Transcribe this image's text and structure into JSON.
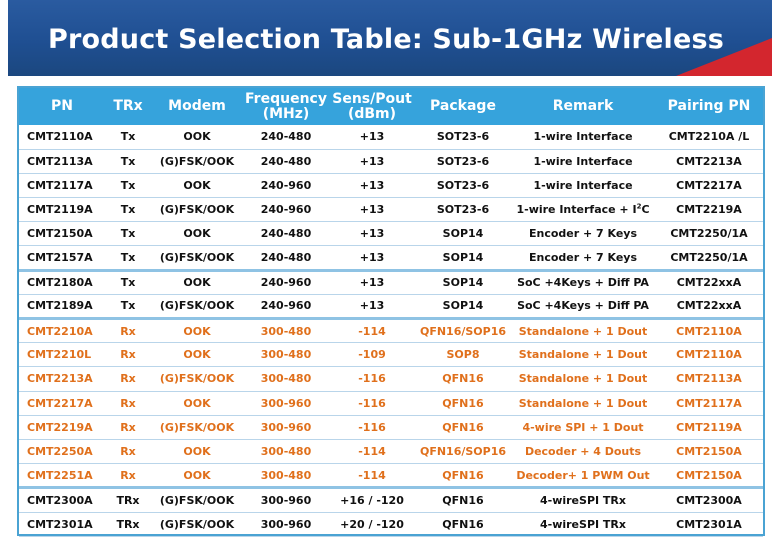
{
  "header": {
    "title": "Product Selection Table: Sub-1GHz Wireless",
    "banner_color": "#1f4f92",
    "accent_color": "#d3262e"
  },
  "table": {
    "header_color": "#36a3dc",
    "rx_text_color": "#e0701c",
    "columns": [
      "PN",
      "TRx",
      "Modem",
      "Frequency (MHz)",
      "Sens/Pout (dBm)",
      "Package",
      "Remark",
      "Pairing PN"
    ],
    "rows": [
      {
        "pn": "CMT2110A",
        "trx": "Tx",
        "modem": "OOK",
        "freq": "240-480",
        "sens": "+13",
        "pkg": "SOT23-6",
        "remark": "1-wire Interface",
        "pair": "CMT2210A /L"
      },
      {
        "pn": "CMT2113A",
        "trx": "Tx",
        "modem": "(G)FSK/OOK",
        "freq": "240-480",
        "sens": "+13",
        "pkg": "SOT23-6",
        "remark": "1-wire Interface",
        "pair": "CMT2213A"
      },
      {
        "pn": "CMT2117A",
        "trx": "Tx",
        "modem": "OOK",
        "freq": "240-960",
        "sens": "+13",
        "pkg": "SOT23-6",
        "remark": "1-wire Interface",
        "pair": "CMT2217A"
      },
      {
        "pn": "CMT2119A",
        "trx": "Tx",
        "modem": "(G)FSK/OOK",
        "freq": "240-960",
        "sens": "+13",
        "pkg": "SOT23-6",
        "remark": "1-wire Interface + I",
        "remark_sup": "2",
        "remark_tail": "C",
        "pair": "CMT2219A"
      },
      {
        "pn": "CMT2150A",
        "trx": "Tx",
        "modem": "OOK",
        "freq": "240-480",
        "sens": "+13",
        "pkg": "SOP14",
        "remark": "Encoder + 7 Keys",
        "pair": "CMT2250/1A"
      },
      {
        "pn": "CMT2157A",
        "trx": "Tx",
        "modem": "(G)FSK/OOK",
        "freq": "240-480",
        "sens": "+13",
        "pkg": "SOP14",
        "remark": "Encoder + 7 Keys",
        "pair": "CMT2250/1A"
      },
      {
        "pn": "CMT2180A",
        "trx": "Tx",
        "modem": "OOK",
        "freq": "240-960",
        "sens": "+13",
        "pkg": "SOP14",
        "remark": "SoC +4Keys + Diff PA",
        "pair": "CMT22xxA"
      },
      {
        "pn": "CMT2189A",
        "trx": "Tx",
        "modem": "(G)FSK/OOK",
        "freq": "240-960",
        "sens": "+13",
        "pkg": "SOP14",
        "remark": "SoC +4Keys + Diff PA",
        "pair": "CMT22xxA"
      },
      {
        "pn": "CMT2210A",
        "trx": "Rx",
        "modem": "OOK",
        "freq": "300-480",
        "sens": "-114",
        "pkg": "QFN16/SOP16",
        "remark": "Standalone + 1 Dout",
        "pair": "CMT2110A"
      },
      {
        "pn": "CMT2210L",
        "trx": "Rx",
        "modem": "OOK",
        "freq": "300-480",
        "sens": "-109",
        "pkg": "SOP8",
        "remark": "Standalone + 1 Dout",
        "pair": "CMT2110A"
      },
      {
        "pn": "CMT2213A",
        "trx": "Rx",
        "modem": "(G)FSK/OOK",
        "freq": "300-480",
        "sens": "-116",
        "pkg": "QFN16",
        "remark": "Standalone + 1 Dout",
        "pair": "CMT2113A"
      },
      {
        "pn": "CMT2217A",
        "trx": "Rx",
        "modem": "OOK",
        "freq": "300-960",
        "sens": "-116",
        "pkg": "QFN16",
        "remark": "Standalone + 1 Dout",
        "pair": "CMT2117A"
      },
      {
        "pn": "CMT2219A",
        "trx": "Rx",
        "modem": "(G)FSK/OOK",
        "freq": "300-960",
        "sens": "-116",
        "pkg": "QFN16",
        "remark": "4-wire SPI + 1 Dout",
        "pair": "CMT2119A"
      },
      {
        "pn": "CMT2250A",
        "trx": "Rx",
        "modem": "OOK",
        "freq": "300-480",
        "sens": "-114",
        "pkg": "QFN16/SOP16",
        "remark": "Decoder + 4 Douts",
        "pair": "CMT2150A"
      },
      {
        "pn": "CMT2251A",
        "trx": "Rx",
        "modem": "OOK",
        "freq": "300-480",
        "sens": "-114",
        "pkg": "QFN16",
        "remark": "Decoder+ 1 PWM Out",
        "pair": "CMT2150A"
      },
      {
        "pn": "CMT2300A",
        "trx": "TRx",
        "modem": "(G)FSK/OOK",
        "freq": "300-960",
        "sens": "+16 / -120",
        "pkg": "QFN16",
        "remark": "4-wireSPI  TRx",
        "pair": "CMT2300A"
      },
      {
        "pn": "CMT2301A",
        "trx": "TRx",
        "modem": "(G)FSK/OOK",
        "freq": "300-960",
        "sens": "+20 / -120",
        "pkg": "QFN16",
        "remark": "4-wireSPI  TRx",
        "pair": "CMT2301A"
      }
    ]
  }
}
